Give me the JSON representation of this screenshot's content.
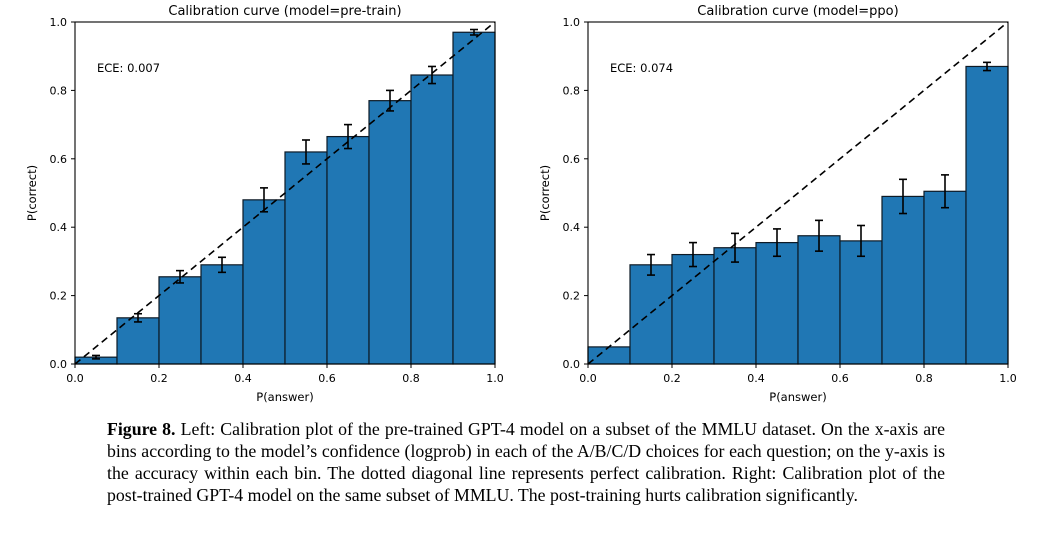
{
  "caption": {
    "label": "Figure 8.",
    "body": " Left: Calibration plot of the pre-trained GPT-4 model on a subset of the MMLU dataset. On the x-axis are bins according to the model’s confidence (logprob) in each of the A/B/C/D choices for each question; on the y-axis is the accuracy within each bin. The dotted diagonal line represents perfect calibration. Right: Calibration plot of the post-trained GPT-4 model on the same subset of MMLU. The post-training hurts calibration significantly."
  },
  "chart_data": [
    {
      "type": "bar",
      "title": "Calibration curve (model=pre-train)",
      "annotation": "ECE: 0.007",
      "xlabel": "P(answer)",
      "ylabel": "P(correct)",
      "xlim": [
        0.0,
        1.0
      ],
      "ylim": [
        0.0,
        1.0
      ],
      "xticks": [
        "0.0",
        "0.2",
        "0.4",
        "0.6",
        "0.8",
        "1.0"
      ],
      "yticks": [
        "0.0",
        "0.2",
        "0.4",
        "0.6",
        "0.8",
        "1.0"
      ],
      "bin_edges": [
        0.0,
        0.1,
        0.2,
        0.3,
        0.4,
        0.5,
        0.6,
        0.7,
        0.8,
        0.9,
        1.0
      ],
      "values": [
        0.02,
        0.135,
        0.255,
        0.29,
        0.48,
        0.62,
        0.665,
        0.77,
        0.845,
        0.97
      ],
      "errors": [
        0.005,
        0.012,
        0.018,
        0.022,
        0.035,
        0.035,
        0.035,
        0.03,
        0.025,
        0.008
      ],
      "diagonal_line": "dashed y=x perfect-calibration reference",
      "bar_color": "#2077b4",
      "edge_color": "#0d1a26",
      "grid": false,
      "legend": null
    },
    {
      "type": "bar",
      "title": "Calibration curve (model=ppo)",
      "annotation": "ECE: 0.074",
      "xlabel": "P(answer)",
      "ylabel": "P(correct)",
      "xlim": [
        0.0,
        1.0
      ],
      "ylim": [
        0.0,
        1.0
      ],
      "xticks": [
        "0.0",
        "0.2",
        "0.4",
        "0.6",
        "0.8",
        "1.0"
      ],
      "yticks": [
        "0.0",
        "0.2",
        "0.4",
        "0.6",
        "0.8",
        "1.0"
      ],
      "bin_edges": [
        0.0,
        0.1,
        0.2,
        0.3,
        0.4,
        0.5,
        0.6,
        0.7,
        0.8,
        0.9,
        1.0
      ],
      "values": [
        0.05,
        0.29,
        0.32,
        0.34,
        0.355,
        0.375,
        0.36,
        0.49,
        0.505,
        0.87
      ],
      "errors": [
        0,
        0.03,
        0.035,
        0.042,
        0.04,
        0.045,
        0.045,
        0.05,
        0.048,
        0.012
      ],
      "diagonal_line": "dashed y=x perfect-calibration reference",
      "bar_color": "#2077b4",
      "edge_color": "#0d1a26",
      "grid": false,
      "legend": null
    }
  ]
}
